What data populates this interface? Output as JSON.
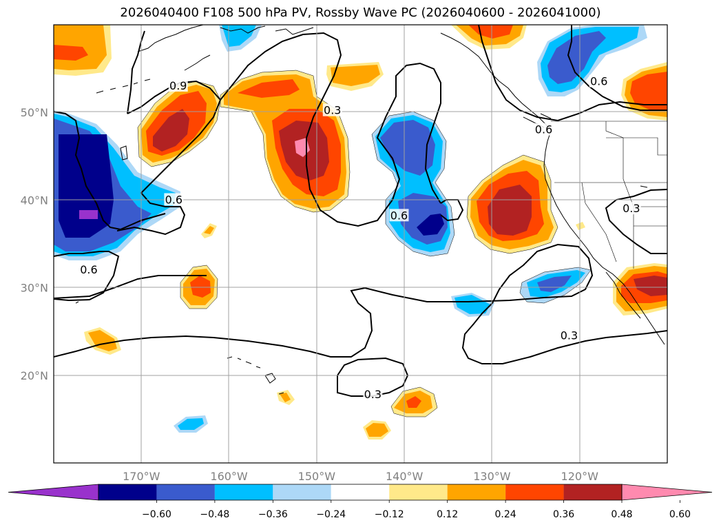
{
  "title": "2026040400 F108 500 hPa PV, Rossby Wave PC (2026040600 - 2026041000)",
  "map": {
    "lon_range": [
      -180,
      -110
    ],
    "lat_range": [
      10,
      60
    ],
    "lat_ticks": [
      {
        "lat": 50,
        "label": "50°N"
      },
      {
        "lat": 40,
        "label": "40°N"
      },
      {
        "lat": 30,
        "label": "30°N"
      },
      {
        "lat": 20,
        "label": "20°N"
      }
    ],
    "lon_ticks": [
      {
        "lon": -170,
        "label": "170°W"
      },
      {
        "lon": -160,
        "label": "160°W"
      },
      {
        "lon": -150,
        "label": "150°W"
      },
      {
        "lon": -140,
        "label": "140°W"
      },
      {
        "lon": -130,
        "label": "130°W"
      },
      {
        "lon": -120,
        "label": "120°W"
      }
    ],
    "contour_labels": [
      {
        "text": "0.9",
        "lon": -165.8,
        "lat": 53.0
      },
      {
        "text": "0.3",
        "lon": -148.2,
        "lat": 50.2
      },
      {
        "text": "0.6",
        "lon": -166.3,
        "lat": 40.0
      },
      {
        "text": "0.6",
        "lon": -140.6,
        "lat": 38.2
      },
      {
        "text": "0.6",
        "lon": -117.8,
        "lat": 53.5
      },
      {
        "text": "0.6",
        "lon": -124.1,
        "lat": 48.0
      },
      {
        "text": "0.3",
        "lon": -114.1,
        "lat": 39.0
      },
      {
        "text": "0.6",
        "lon": -176.0,
        "lat": 32.0
      },
      {
        "text": "0.3",
        "lon": -121.2,
        "lat": 24.5
      },
      {
        "text": "0.3",
        "lon": -143.6,
        "lat": 17.8
      }
    ]
  },
  "colorbar": {
    "colors": [
      "#9932cc",
      "#00008b",
      "#3a5bcd",
      "#00bfff",
      "#add8f7",
      "#ffffff",
      "#ffe98a",
      "#ffa500",
      "#ff4500",
      "#b22222",
      "#ff8aaf"
    ],
    "ticks": [
      "−0.60",
      "−0.48",
      "−0.36",
      "−0.24",
      "−0.12",
      "0.12",
      "0.24",
      "0.36",
      "0.48",
      "0.60"
    ]
  }
}
